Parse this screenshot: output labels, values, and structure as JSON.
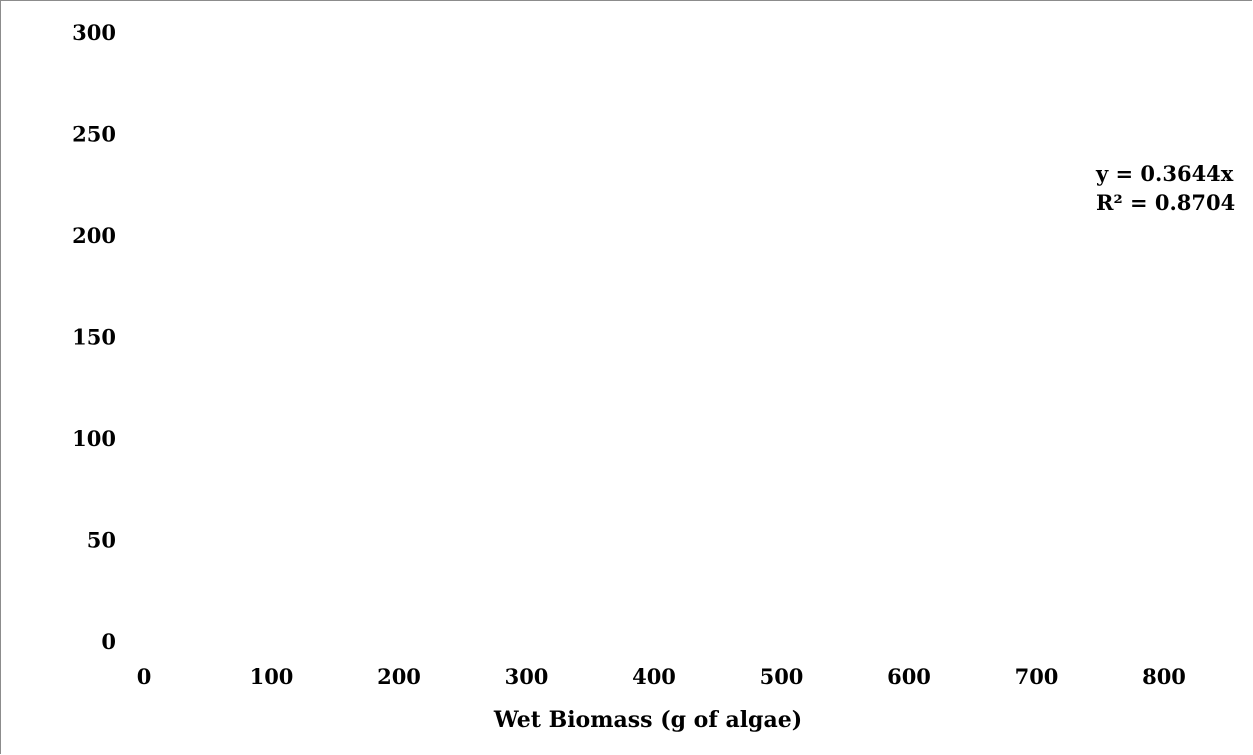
{
  "chart_data": {
    "type": "scatter",
    "title": "",
    "xlabel": "Wet Biomass (g of algae)",
    "ylabel": "",
    "xlim": [
      0,
      800
    ],
    "ylim": [
      0,
      300
    ],
    "x_ticks": [
      "0",
      "100",
      "200",
      "300",
      "400",
      "500",
      "600",
      "700",
      "800"
    ],
    "y_ticks": [
      "0",
      "50",
      "100",
      "150",
      "200",
      "250",
      "300"
    ],
    "grid": false,
    "series": [],
    "trendline": {
      "equation": "y = 0.3644x",
      "r_squared": "R² = 0.8704",
      "slope": 0.3644
    }
  }
}
